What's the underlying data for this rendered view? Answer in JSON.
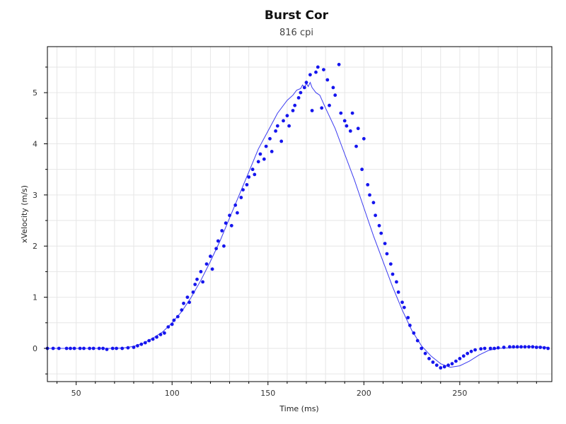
{
  "chart_data": {
    "type": "scatter",
    "title": "Burst Cor",
    "subtitle": "816 cpi",
    "xlabel": "Time (ms)",
    "ylabel": "xVelocity (m/s)",
    "xlim": [
      35,
      298
    ],
    "ylim": [
      -0.65,
      5.9
    ],
    "x_ticks": [
      50,
      100,
      150,
      200,
      250
    ],
    "y_ticks": [
      0,
      1,
      2,
      3,
      4,
      5
    ],
    "grid": true,
    "legend": "none",
    "colors": {
      "points": "#1515ee",
      "line": "#3a3af0"
    },
    "series": [
      {
        "type": "scatter",
        "x": [
          35,
          38,
          41,
          45,
          47,
          49,
          52,
          54,
          57,
          59,
          62,
          64,
          66,
          69,
          71,
          74,
          77,
          80,
          82,
          84,
          86,
          88,
          90,
          92,
          94,
          96,
          98,
          100,
          101,
          103,
          105,
          106,
          108,
          109,
          111,
          112,
          113,
          115,
          116,
          118,
          120,
          121,
          123,
          124,
          126,
          127,
          128,
          130,
          131,
          133,
          134,
          136,
          137,
          139,
          140,
          142,
          143,
          145,
          146,
          148,
          149,
          151,
          152,
          154,
          155,
          157,
          158,
          160,
          161,
          163,
          164,
          166,
          167,
          169,
          170,
          172,
          173,
          175,
          176,
          178,
          179,
          181,
          182,
          184,
          185,
          187,
          188,
          190,
          191,
          193,
          194,
          196,
          197,
          199,
          200,
          202,
          203,
          205,
          206,
          208,
          209,
          211,
          212,
          214,
          215,
          217,
          218,
          220,
          221,
          223,
          224,
          226,
          228,
          230,
          232,
          234,
          236,
          238,
          240,
          242,
          244,
          246,
          248,
          250,
          252,
          254,
          256,
          258,
          261,
          263,
          266,
          268,
          270,
          273,
          276,
          278,
          280,
          282,
          284,
          286,
          288,
          290,
          292,
          294,
          296
        ],
        "y": [
          0.0,
          0.0,
          0.0,
          0.0,
          0.0,
          0.0,
          0.0,
          0.0,
          0.0,
          0.0,
          0.0,
          0.0,
          -0.02,
          0.0,
          0.0,
          0.0,
          0.01,
          0.02,
          0.05,
          0.08,
          0.11,
          0.15,
          0.18,
          0.22,
          0.27,
          0.3,
          0.42,
          0.47,
          0.55,
          0.62,
          0.75,
          0.88,
          1.0,
          0.9,
          1.1,
          1.25,
          1.35,
          1.5,
          1.3,
          1.65,
          1.8,
          1.55,
          1.95,
          2.1,
          2.3,
          2.0,
          2.45,
          2.6,
          2.4,
          2.8,
          2.65,
          2.95,
          3.1,
          3.2,
          3.35,
          3.5,
          3.4,
          3.65,
          3.8,
          3.7,
          3.95,
          4.1,
          3.85,
          4.25,
          4.35,
          4.05,
          4.45,
          4.55,
          4.35,
          4.65,
          4.75,
          4.9,
          5.0,
          5.1,
          5.2,
          5.35,
          4.65,
          5.4,
          5.5,
          4.7,
          5.45,
          5.25,
          4.75,
          5.1,
          4.95,
          5.55,
          4.6,
          4.45,
          4.35,
          4.25,
          4.6,
          3.95,
          4.3,
          3.5,
          4.1,
          3.2,
          3.0,
          2.85,
          2.6,
          2.4,
          2.25,
          2.05,
          1.85,
          1.65,
          1.45,
          1.3,
          1.1,
          0.9,
          0.8,
          0.6,
          0.45,
          0.3,
          0.15,
          0.0,
          -0.1,
          -0.2,
          -0.27,
          -0.33,
          -0.38,
          -0.36,
          -0.33,
          -0.3,
          -0.25,
          -0.2,
          -0.15,
          -0.1,
          -0.06,
          -0.03,
          -0.01,
          0.0,
          0.0,
          0.0,
          0.01,
          0.02,
          0.03,
          0.03,
          0.03,
          0.03,
          0.03,
          0.03,
          0.03,
          0.02,
          0.02,
          0.01,
          0.0
        ]
      },
      {
        "type": "line",
        "x": [
          35,
          50,
          60,
          70,
          75,
          80,
          85,
          90,
          95,
          100,
          105,
          110,
          115,
          120,
          125,
          130,
          135,
          140,
          145,
          150,
          155,
          160,
          163,
          165,
          167,
          168,
          169,
          170,
          171,
          172,
          173,
          174,
          175,
          177,
          180,
          185,
          190,
          195,
          200,
          205,
          210,
          215,
          220,
          225,
          230,
          235,
          240,
          245,
          250,
          255,
          260,
          265,
          270,
          275,
          280,
          285,
          290,
          296
        ],
        "y": [
          0.0,
          0.0,
          0.0,
          0.0,
          0.01,
          0.04,
          0.1,
          0.2,
          0.32,
          0.5,
          0.72,
          1.0,
          1.33,
          1.7,
          2.1,
          2.55,
          3.0,
          3.45,
          3.9,
          4.25,
          4.6,
          4.85,
          4.95,
          5.05,
          5.08,
          5.15,
          5.1,
          5.18,
          5.12,
          5.2,
          5.1,
          5.05,
          5.0,
          4.95,
          4.7,
          4.3,
          3.8,
          3.3,
          2.75,
          2.2,
          1.7,
          1.2,
          0.75,
          0.35,
          0.05,
          -0.15,
          -0.3,
          -0.37,
          -0.34,
          -0.25,
          -0.13,
          -0.04,
          0.0,
          0.01,
          0.02,
          0.03,
          0.03,
          0.02
        ]
      }
    ]
  }
}
